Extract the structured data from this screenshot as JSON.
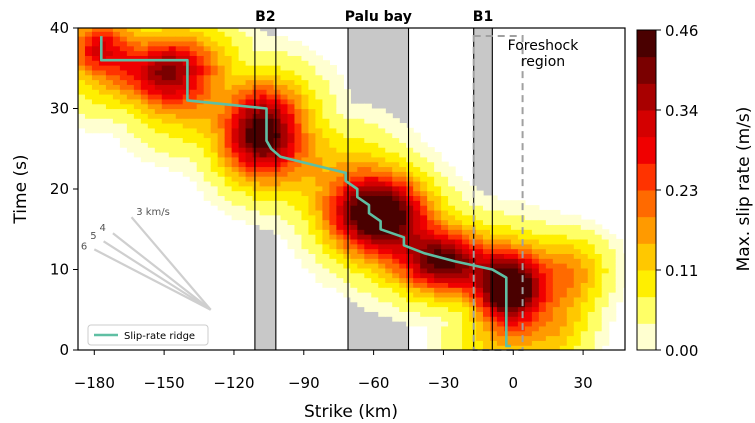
{
  "chart_data": {
    "type": "heatmap",
    "xlabel": "Strike (km)",
    "ylabel": "Time (s)",
    "xlim": [
      -187,
      48
    ],
    "ylim": [
      0,
      40
    ],
    "xticks": [
      -180,
      -150,
      -120,
      -90,
      -60,
      -30,
      0,
      30
    ],
    "yticks": [
      0,
      10,
      20,
      30,
      40
    ],
    "colorbar": {
      "label": "Max. slip rate (m/s)",
      "ticks": [
        "0.00",
        "0.11",
        "0.23",
        "0.34",
        "0.46"
      ],
      "min": 0.0,
      "max": 0.46,
      "colors": [
        "#ffffd0",
        "#ffff66",
        "#ffef00",
        "#ffc800",
        "#ff9a00",
        "#ff6a00",
        "#ff3300",
        "#f00000",
        "#d40000",
        "#a80000",
        "#7a0000",
        "#4a0000"
      ]
    },
    "bands": [
      {
        "label": "B2",
        "x0": -111,
        "x1": -102
      },
      {
        "label": "Palu bay",
        "x0": -71,
        "x1": -45
      },
      {
        "label": "B1",
        "x0": -17,
        "x1": -9
      }
    ],
    "foreshock": {
      "label_line1": "Foreshock",
      "label_line2": "region",
      "x0": -17,
      "x1": 4,
      "y0": 0,
      "y1": 39
    },
    "ridge": {
      "name": "Slip-rate ridge",
      "color": "#5fbfa3",
      "x": [
        -177,
        -177,
        -140,
        -140,
        -106,
        -106,
        -104,
        -100,
        -86,
        -72,
        -72,
        -67,
        -67,
        -62,
        -62,
        -57,
        -57,
        -47,
        -47,
        -38,
        -25,
        -25,
        -9,
        -9,
        -3,
        -3,
        -1
      ],
      "y": [
        39,
        36,
        36,
        31,
        30,
        26,
        25,
        24,
        23,
        22,
        21,
        20,
        19,
        18,
        17,
        16,
        15,
        14,
        13,
        12,
        11,
        11,
        10,
        10,
        9,
        0.5,
        0.5
      ]
    },
    "blobs": [
      {
        "cx": -150,
        "cy": 34.5,
        "sx": 14,
        "sy": 2.8,
        "amp": 0.3
      },
      {
        "cx": -178,
        "cy": 37.5,
        "sx": 8,
        "sy": 2.0,
        "amp": 0.18
      },
      {
        "cx": -108,
        "cy": 27,
        "sx": 12,
        "sy": 3.5,
        "amp": 0.36
      },
      {
        "cx": -58,
        "cy": 17,
        "sx": 14,
        "sy": 3.2,
        "amp": 0.42
      },
      {
        "cx": -30,
        "cy": 11,
        "sx": 12,
        "sy": 2.5,
        "amp": 0.33
      },
      {
        "cx": -2,
        "cy": 7.5,
        "sx": 9,
        "sy": 3.0,
        "amp": 0.45
      },
      {
        "cx": 25,
        "cy": 10,
        "sx": 12,
        "sy": 3.0,
        "amp": 0.14
      },
      {
        "cx": 20,
        "cy": 4,
        "sx": 10,
        "sy": 3.0,
        "amp": 0.1
      }
    ],
    "velocity_fan": {
      "labels": [
        "3 km/s",
        "4",
        "5",
        "6"
      ],
      "speeds": [
        3,
        4,
        5,
        6
      ]
    },
    "legend": {
      "placement": "lower-left"
    }
  }
}
